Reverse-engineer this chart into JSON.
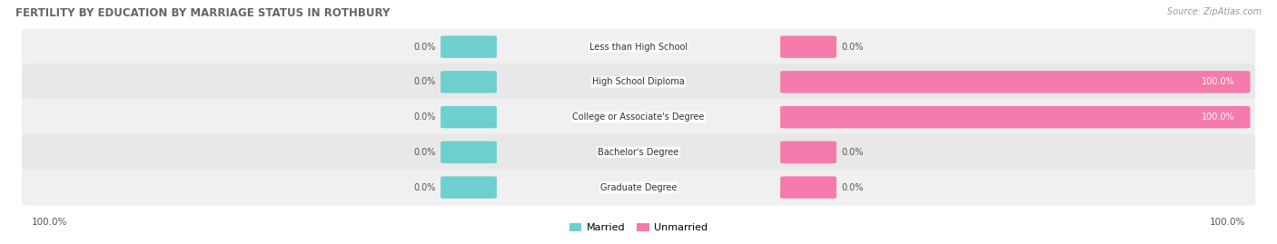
{
  "title": "FERTILITY BY EDUCATION BY MARRIAGE STATUS IN ROTHBURY",
  "source": "Source: ZipAtlas.com",
  "categories": [
    "Less than High School",
    "High School Diploma",
    "College or Associate's Degree",
    "Bachelor's Degree",
    "Graduate Degree"
  ],
  "married_values": [
    0.0,
    0.0,
    0.0,
    0.0,
    0.0
  ],
  "unmarried_values": [
    0.0,
    100.0,
    100.0,
    0.0,
    0.0
  ],
  "married_color": "#6ecfcf",
  "unmarried_color": "#f47bab",
  "left_label_pct": [
    0.0,
    0.0,
    0.0,
    0.0,
    0.0
  ],
  "right_label_pct": [
    0.0,
    100.0,
    100.0,
    0.0,
    0.0
  ],
  "bottom_left_label": "100.0%",
  "bottom_right_label": "100.0%",
  "legend_married": "Married",
  "legend_unmarried": "Unmarried",
  "row_bg_even": "#f0f0f0",
  "row_bg_odd": "#e8e8e8",
  "figsize": [
    14.06,
    2.69
  ],
  "dpi": 100
}
